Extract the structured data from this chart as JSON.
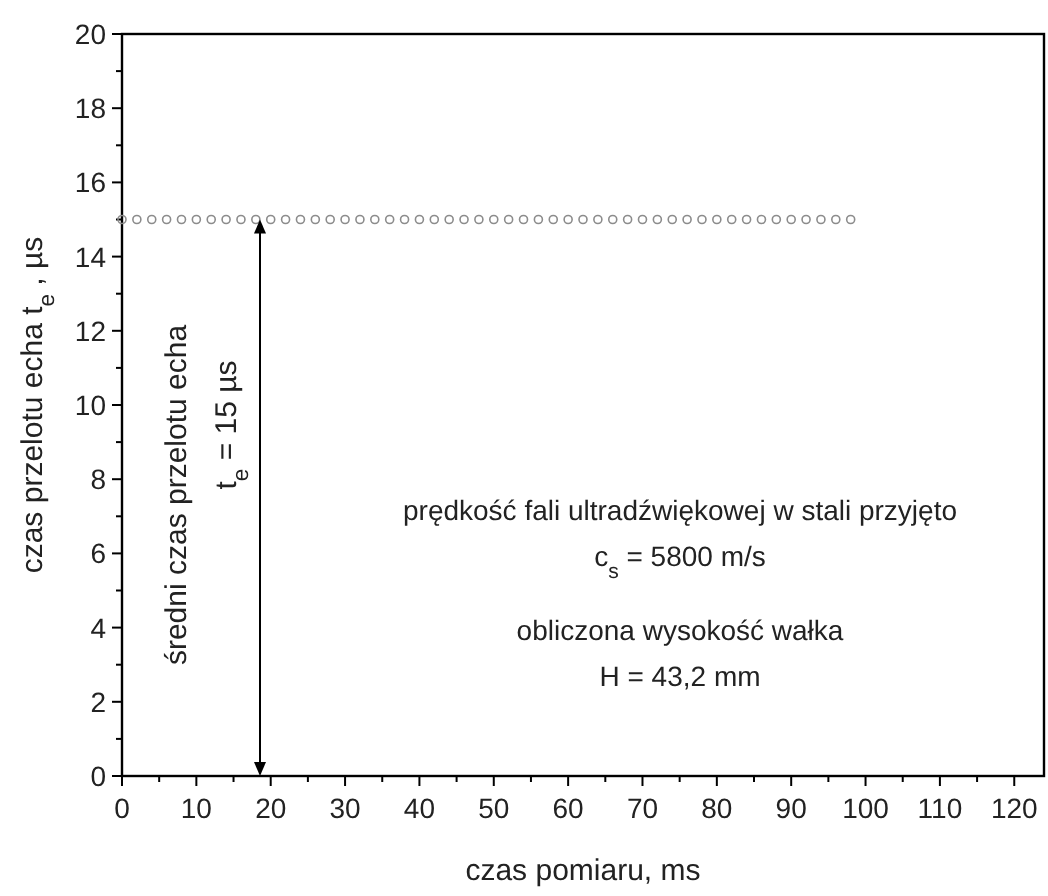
{
  "chart_data": {
    "type": "scatter",
    "xlabel": "czas pomiaru, ms",
    "ylabel": "czas przelotu echa t$_{e}$ , µs",
    "x": [
      0,
      2,
      4,
      6,
      8,
      10,
      12,
      14,
      16,
      18,
      20,
      22,
      24,
      26,
      28,
      30,
      32,
      34,
      36,
      38,
      40,
      42,
      44,
      46,
      48,
      50,
      52,
      54,
      56,
      58,
      60,
      62,
      64,
      66,
      68,
      70,
      72,
      74,
      76,
      78,
      80,
      82,
      84,
      86,
      88,
      90,
      92,
      94,
      96,
      98
    ],
    "series": [
      {
        "color": "#8c8c8c",
        "values": [
          15,
          15,
          15,
          15,
          15,
          15,
          15,
          15,
          15,
          15,
          15,
          15,
          15,
          15,
          15,
          15,
          15,
          15,
          15,
          15,
          15,
          15,
          15,
          15,
          15,
          15,
          15,
          15,
          15,
          15,
          15,
          15,
          15,
          15,
          15,
          15,
          15,
          15,
          15,
          15,
          15,
          15,
          15,
          15,
          15,
          15,
          15,
          15,
          15,
          15
        ]
      }
    ],
    "marker": "circle",
    "xlim": [
      0,
      124
    ],
    "xticks": [
      0,
      {
        "value": 5,
        "label": null
      },
      10,
      {
        "value": 15,
        "label": null
      },
      20,
      {
        "value": 25,
        "label": null
      },
      30,
      {
        "value": 35,
        "label": null
      },
      40,
      {
        "value": 45,
        "label": null
      },
      50,
      {
        "value": 55,
        "label": null
      },
      60,
      {
        "value": 65,
        "label": null
      },
      70,
      {
        "value": 75,
        "label": null
      },
      80,
      {
        "value": 85,
        "label": null
      },
      90,
      {
        "value": 95,
        "label": null
      },
      100,
      {
        "value": 105,
        "label": null
      },
      110,
      {
        "value": 115,
        "label": null
      },
      120
    ],
    "ylim": [
      0,
      20
    ],
    "yticks": [
      0,
      {
        "value": 1,
        "label": null
      },
      2,
      {
        "value": 3,
        "label": null
      },
      4,
      {
        "value": 5,
        "label": null
      },
      6,
      {
        "value": 7,
        "label": null
      },
      8,
      {
        "value": 9,
        "label": null
      },
      10,
      {
        "value": 11,
        "label": null
      },
      12,
      {
        "value": 13,
        "label": null
      },
      14,
      {
        "value": 15,
        "label": null
      },
      16,
      {
        "value": 17,
        "label": null
      },
      18,
      {
        "value": 19,
        "label": null
      },
      20
    ],
    "annotations": [
      "średni czas przelotu echa",
      "t$_{e}$ = 15 µs",
      "prędkość fali ultradźwiękowej w stali przyjęto",
      "c$_{s}$ = 5800 m/s",
      "obliczona wysokość wałka",
      "H = 43,2 mm"
    ]
  }
}
